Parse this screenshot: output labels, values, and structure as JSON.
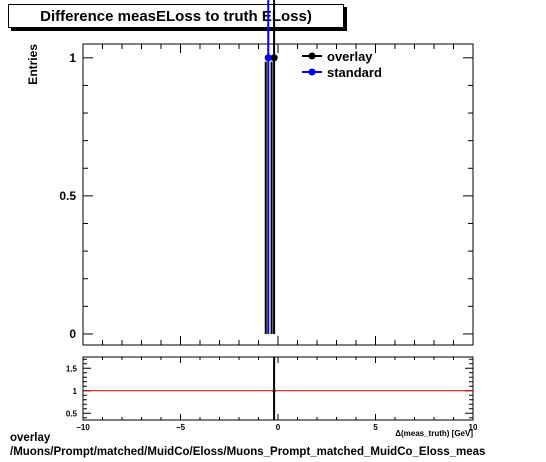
{
  "chart_data": [
    {
      "type": "scatter",
      "title": "Difference measELoss to truth ELoss)",
      "ylabel": "Entries",
      "xlim": [
        -10,
        10
      ],
      "ylim": [
        -0.04,
        1.05
      ],
      "yticks": [
        0,
        0.5,
        1
      ],
      "ytick_labels": [
        "0",
        "0.5",
        "1"
      ],
      "series": [
        {
          "name": "overlay",
          "color": "#000000",
          "x": [
            -0.2
          ],
          "y": [
            1
          ],
          "yerr": [
            1
          ]
        },
        {
          "name": "standard",
          "color": "#0000ff",
          "x": [
            -0.5
          ],
          "y": [
            1
          ],
          "yerr": [
            1
          ]
        }
      ],
      "legend": "top-right",
      "grid": false
    },
    {
      "type": "line",
      "xlabel": "Δ(meas_truth) [GeV]",
      "xlim": [
        -10,
        10
      ],
      "ylim": [
        0.35,
        1.75
      ],
      "xticks": [
        -10,
        -5,
        0,
        5,
        10
      ],
      "xtick_labels": [
        "−10",
        "−5",
        "0",
        "5",
        "10"
      ],
      "yticks": [
        0.5,
        1,
        1.5
      ],
      "ytick_labels": [
        "0.5",
        "1",
        "1.5"
      ],
      "reference_line": {
        "y": 1,
        "color": "#cc0000"
      },
      "points": [
        {
          "x": -0.2,
          "y": 1,
          "yerr_low": 0.65,
          "yerr_high": 0.75
        }
      ]
    }
  ],
  "footer": {
    "line1": "overlay",
    "line2": "/Muons/Prompt/matched/MuidCo/Eloss/Muons_Prompt_matched_MuidCo_Eloss_meas"
  }
}
